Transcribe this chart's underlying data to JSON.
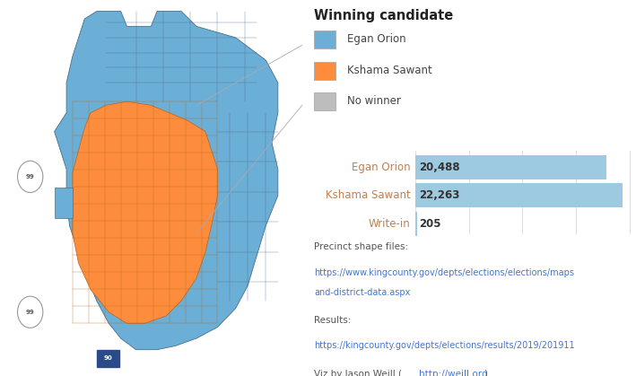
{
  "title": "Winning candidate",
  "legend_items": [
    {
      "label": "Egan Orion",
      "color": "#6baed6"
    },
    {
      "label": "Kshama Sawant",
      "color": "#fd8d3c"
    },
    {
      "label": "No winner",
      "color": "#bdbdbd"
    }
  ],
  "bar_candidates": [
    "Egan Orion",
    "Kshama Sawant",
    "Write-in"
  ],
  "bar_values": [
    20488,
    22263,
    205
  ],
  "bar_color": "#9ecae1",
  "max_value": 23000,
  "background_color": "#ffffff",
  "map_bg_color": "#dde0e4",
  "map_egan_color": "#6baed6",
  "map_sawant_color": "#fd8d3c",
  "map_border_color": "#4a6e8a",
  "precinct_text": "Precinct shape files:",
  "precinct_url_line1": "https://www.kingcounty.gov/depts/elections/elections/maps",
  "precinct_url_line2": "and-district-data.aspx",
  "results_text": "Results:",
  "results_url": "https://kingcounty.gov/depts/elections/results/2019/201911",
  "viz_text": "Viz by Jason Weill (",
  "viz_url": "http://weill.org",
  "viz_text2": ")"
}
